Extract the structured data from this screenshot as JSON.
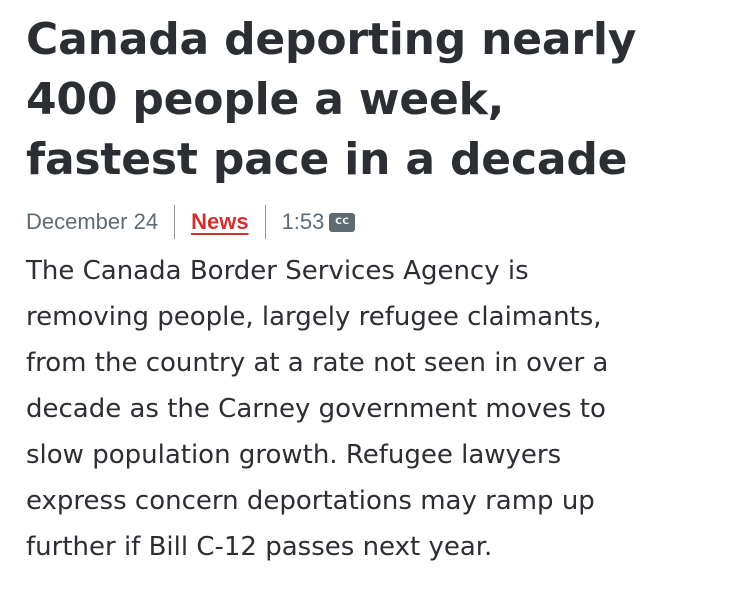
{
  "headline": {
    "lines": [
      "Canada deporting nearly",
      "400 people a week,",
      "fastest pace in a decade"
    ]
  },
  "meta": {
    "date": "December 24",
    "category": "News",
    "duration": "1:53",
    "cc_label": "CC",
    "cc_icon": "closed-captions-icon"
  },
  "summary": {
    "lines": [
      "The Canada Border Services Agency is",
      "removing people, largely refugee claimants,",
      "from the country at a rate not seen in over a",
      "decade as the Carney government moves to",
      "slow population growth. Refugee lawyers",
      "express concern deportations may ramp up",
      "further if Bill C-12 passes next year."
    ]
  },
  "colors": {
    "text": "#2b2e33",
    "meta": "#5f6b73",
    "accent": "#d32f2f"
  }
}
